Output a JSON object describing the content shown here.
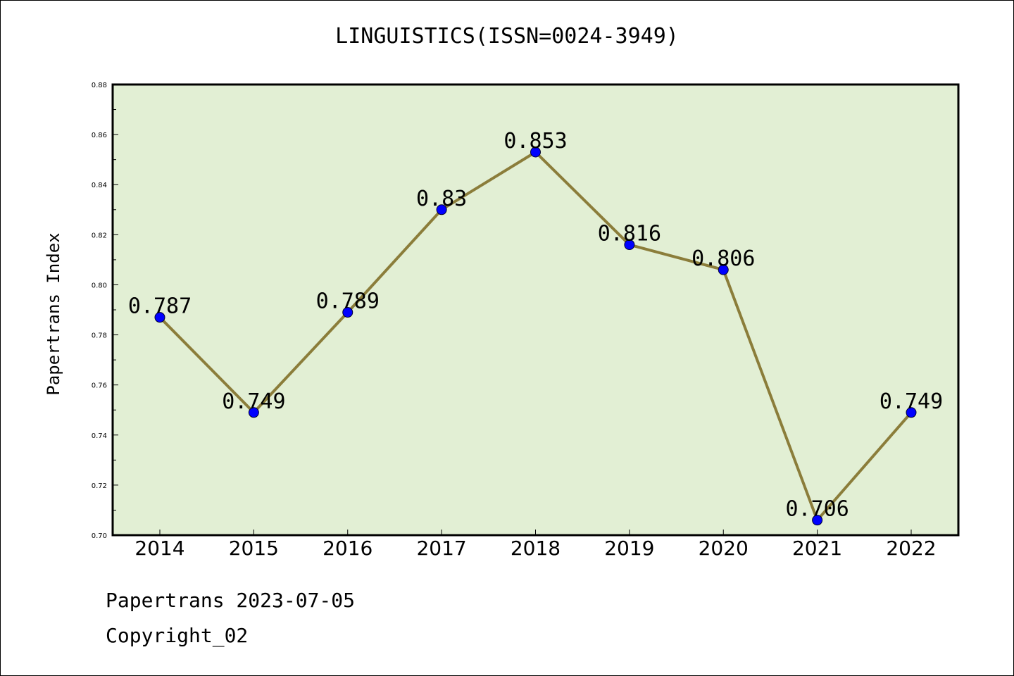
{
  "chart_data": {
    "type": "line",
    "title": "LINGUISTICS(ISSN=0024-3949)",
    "xlabel": "",
    "ylabel": "Papertrans Index",
    "categories": [
      "2014",
      "2015",
      "2016",
      "2017",
      "2018",
      "2019",
      "2020",
      "2021",
      "2022"
    ],
    "series": [
      {
        "values": [
          0.787,
          0.749,
          0.789,
          0.83,
          0.853,
          0.816,
          0.806,
          0.706,
          0.749
        ],
        "data_labels": [
          "0.787",
          "0.749",
          "0.789",
          "0.83",
          "0.853",
          "0.816",
          "0.806",
          "0.706",
          "0.749"
        ]
      }
    ],
    "ylim": [
      0.7,
      0.88
    ],
    "yticks": [
      "0.70",
      "0.72",
      "0.74",
      "0.76",
      "0.78",
      "0.80",
      "0.82",
      "0.84",
      "0.86",
      "0.88"
    ],
    "grid": false,
    "legend": "none",
    "colors": {
      "plot_background": "#e2efd4",
      "line": "#8b7d3a",
      "marker": "#0000ff"
    }
  },
  "footer": {
    "line1": "Papertrans 2023-07-05",
    "line2": "Copyright_02"
  }
}
